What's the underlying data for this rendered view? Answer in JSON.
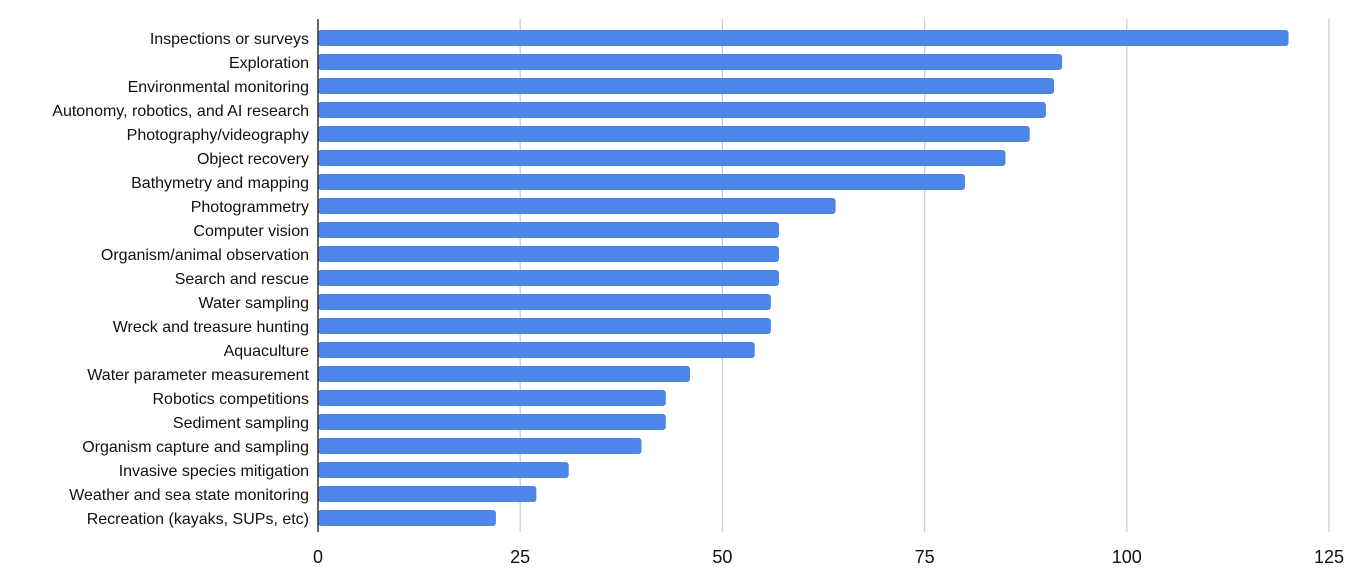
{
  "chart_data": {
    "type": "bar",
    "orientation": "horizontal",
    "title": "",
    "xlabel": "",
    "ylabel": "",
    "xlim": [
      0,
      125
    ],
    "x_ticks": [
      0,
      25,
      50,
      75,
      100,
      125
    ],
    "grid": true,
    "legend": "none",
    "bar_color": "#4f86ec",
    "grid_color": "#cccccc",
    "axis_color": "#333333",
    "categories": [
      "Inspections or surveys",
      "Exploration",
      "Environmental monitoring",
      "Autonomy, robotics, and AI research",
      "Photography/videography",
      "Object recovery",
      "Bathymetry and mapping",
      "Photogrammetry",
      "Computer vision",
      "Organism/animal observation",
      "Search and rescue",
      "Water sampling",
      "Wreck and treasure hunting",
      "Aquaculture",
      "Water parameter measurement",
      "Robotics competitions",
      "Sediment sampling",
      "Organism capture and sampling",
      "Invasive species mitigation",
      "Weather and sea state monitoring",
      "Recreation (kayaks, SUPs, etc)"
    ],
    "values": [
      120,
      92,
      91,
      90,
      88,
      85,
      80,
      64,
      57,
      57,
      57,
      56,
      56,
      54,
      46,
      43,
      43,
      40,
      31,
      27,
      22
    ]
  }
}
